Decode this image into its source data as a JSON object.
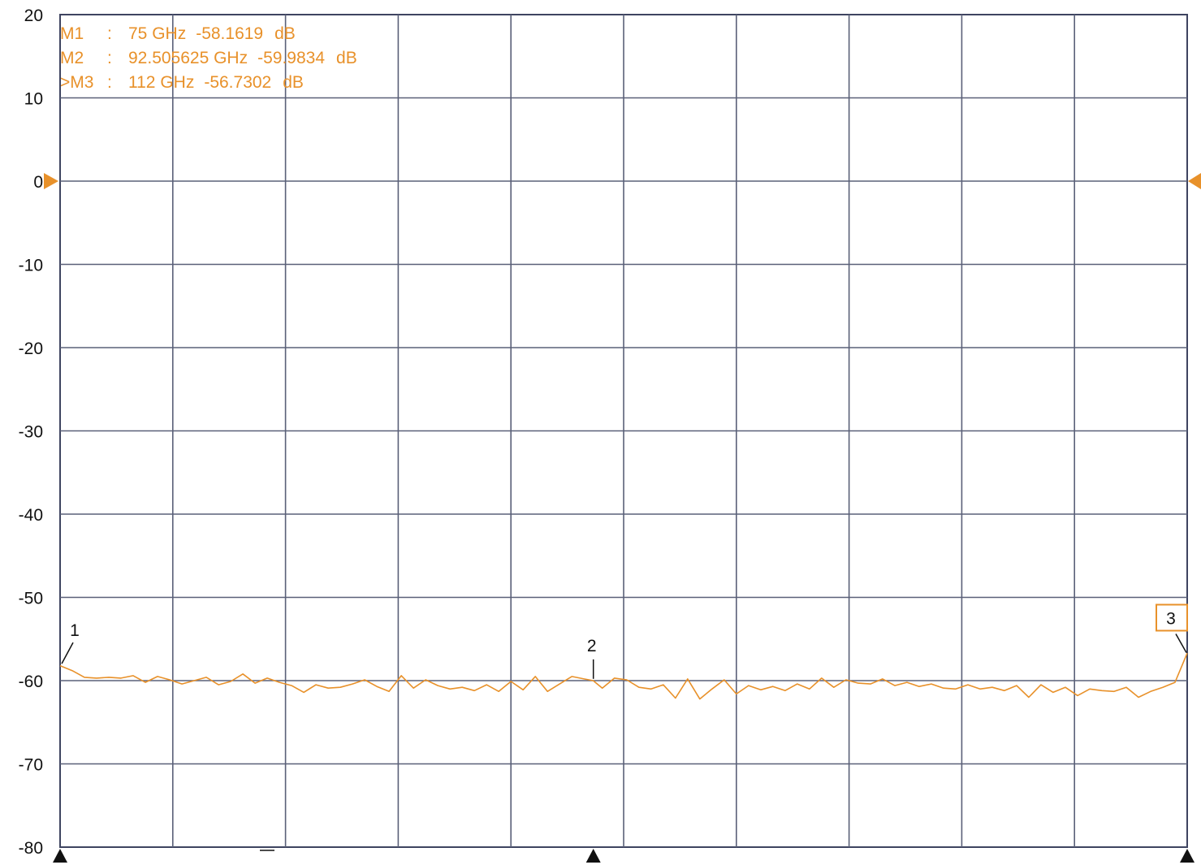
{
  "chart_data": {
    "type": "line",
    "title": "",
    "xlabel": "",
    "ylabel": "",
    "x_unit": "GHz",
    "y_unit": "dB",
    "xlim": [
      75,
      112
    ],
    "ylim": [
      -80,
      20
    ],
    "y_ticks": [
      20,
      10,
      0,
      -10,
      -20,
      -30,
      -40,
      -50,
      -60,
      -70,
      -80
    ],
    "y_tick_labels": [
      "20",
      "10",
      "0",
      "-10",
      "-20",
      "-30",
      "-40",
      "-50",
      "-60",
      "-70",
      "-80"
    ],
    "x_divisions": 10,
    "grid": true,
    "reference_level": 0,
    "trace_color": "#e8912a",
    "grid_color": "#5a6078",
    "readout_color": "#e8912a",
    "series": [
      {
        "x": [
          75.0,
          75.4,
          75.8,
          76.2,
          76.6,
          77.0,
          77.4,
          77.8,
          78.2,
          78.6,
          79.0,
          79.4,
          79.8,
          80.2,
          80.6,
          81.0,
          81.4,
          81.8,
          82.2,
          82.6,
          83.0,
          83.4,
          83.8,
          84.2,
          84.6,
          85.0,
          85.4,
          85.8,
          86.2,
          86.6,
          87.0,
          87.4,
          87.8,
          88.2,
          88.6,
          89.0,
          89.4,
          89.8,
          90.2,
          90.6,
          91.0,
          91.4,
          91.8,
          92.2,
          92.5,
          92.8,
          93.2,
          93.6,
          94.0,
          94.4,
          94.8,
          95.2,
          95.6,
          96.0,
          96.4,
          96.8,
          97.2,
          97.6,
          98.0,
          98.4,
          98.8,
          99.2,
          99.6,
          100.0,
          100.4,
          100.8,
          101.2,
          101.6,
          102.0,
          102.4,
          102.8,
          103.2,
          103.6,
          104.0,
          104.4,
          104.8,
          105.2,
          105.6,
          106.0,
          106.4,
          106.8,
          107.2,
          107.6,
          108.0,
          108.4,
          108.8,
          109.2,
          109.6,
          110.0,
          110.4,
          110.8,
          111.2,
          111.6,
          112.0
        ],
        "values": [
          -58.2,
          -58.8,
          -59.6,
          -59.7,
          -59.6,
          -59.7,
          -59.4,
          -60.2,
          -59.5,
          -59.9,
          -60.4,
          -60.0,
          -59.6,
          -60.5,
          -60.1,
          -59.2,
          -60.3,
          -59.7,
          -60.2,
          -60.6,
          -61.4,
          -60.5,
          -60.9,
          -60.8,
          -60.4,
          -59.9,
          -60.7,
          -61.3,
          -59.4,
          -60.9,
          -59.9,
          -60.6,
          -61.0,
          -60.8,
          -61.2,
          -60.5,
          -61.3,
          -60.1,
          -61.1,
          -59.5,
          -61.3,
          -60.4,
          -59.5,
          -59.8,
          -60.0,
          -60.9,
          -59.7,
          -59.9,
          -60.8,
          -61.0,
          -60.5,
          -62.1,
          -59.8,
          -62.2,
          -61.0,
          -59.9,
          -61.6,
          -60.6,
          -61.1,
          -60.7,
          -61.2,
          -60.4,
          -61.0,
          -59.7,
          -60.8,
          -59.9,
          -60.3,
          -60.4,
          -59.8,
          -60.6,
          -60.2,
          -60.7,
          -60.4,
          -60.9,
          -61.0,
          -60.5,
          -61.0,
          -60.8,
          -61.2,
          -60.6,
          -62.0,
          -60.5,
          -61.4,
          -60.8,
          -61.8,
          -61.0,
          -61.2,
          -61.3,
          -60.8,
          -62.0,
          -61.3,
          -60.8,
          -60.2,
          -56.7
        ]
      }
    ],
    "markers": [
      {
        "number": "1",
        "label": "M1",
        "freq": "75 GHz",
        "level": "-58.1619",
        "unit": "dB",
        "x": 75,
        "y": -58.1619,
        "active": false,
        "boxed": false
      },
      {
        "number": "2",
        "label": "M2",
        "freq": "92.505625 GHz",
        "level": "-59.9834",
        "unit": "dB",
        "x": 92.505625,
        "y": -59.9834,
        "active": false,
        "boxed": false
      },
      {
        "number": "3",
        "label": "M3",
        "freq": "112 GHz",
        "level": "-56.7302",
        "unit": "dB",
        "x": 112,
        "y": -56.7302,
        "active": true,
        "boxed": true
      }
    ],
    "readout_lines": [
      {
        "prefix": "",
        "label": "M1",
        "sep": ":",
        "freq": "75 GHz",
        "level": "-58.1619",
        "unit": "dB"
      },
      {
        "prefix": "",
        "label": "M2",
        "sep": ":",
        "freq": "92.505625 GHz",
        "level": "-59.9834",
        "unit": "dB"
      },
      {
        "prefix": ">",
        "label": "M3",
        "sep": ":",
        "freq": "112 GHz",
        "level": "-56.7302",
        "unit": "dB"
      }
    ]
  }
}
